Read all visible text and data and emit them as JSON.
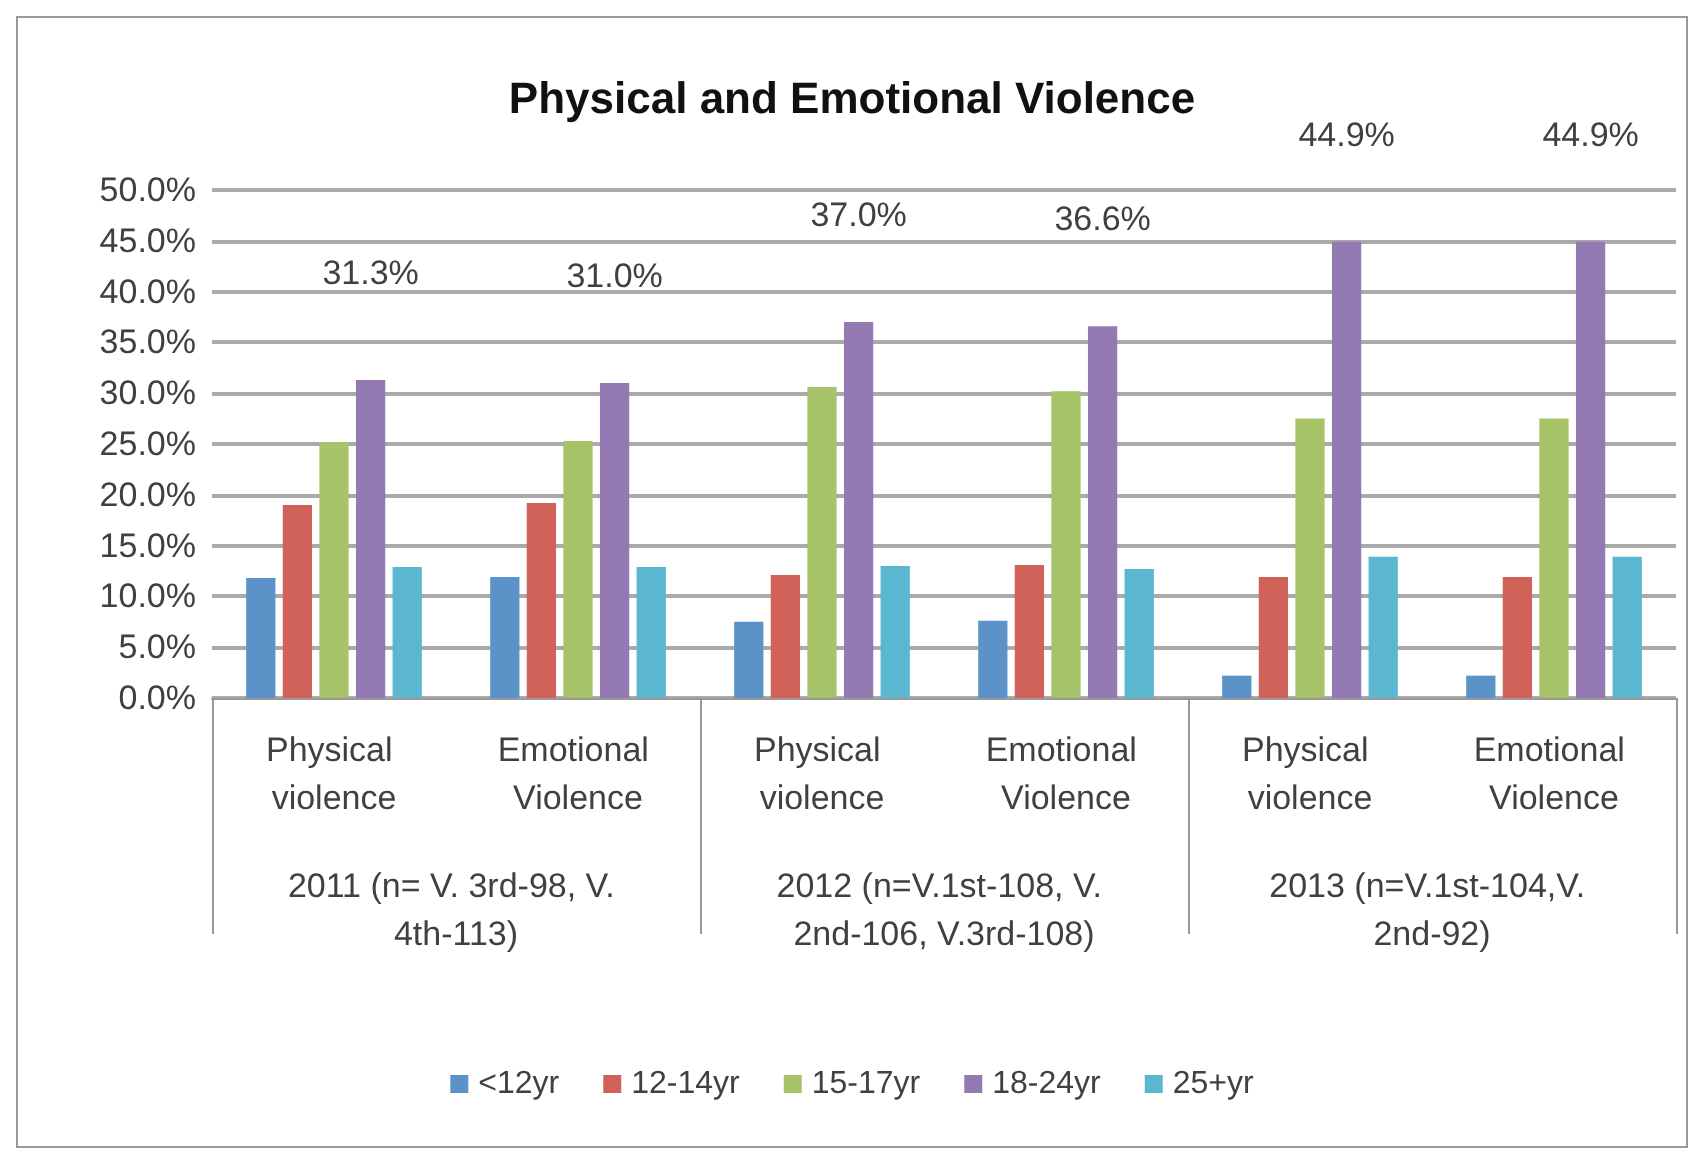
{
  "chart_data": {
    "type": "bar",
    "title": "Physical and Emotional Violence",
    "categories": [
      "Physical violence",
      "Emotional Violence",
      "Physical violence",
      "Emotional Violence",
      "Physical violence",
      "Emotional Violence"
    ],
    "series": [
      {
        "name": "<12yr",
        "color": "#5b93c8",
        "values": [
          11.8,
          11.9,
          7.5,
          7.6,
          2.2,
          2.2
        ]
      },
      {
        "name": "12-14yr",
        "color": "#d0625a",
        "values": [
          19.0,
          19.2,
          12.1,
          13.1,
          11.9,
          11.9
        ]
      },
      {
        "name": "15-17yr",
        "color": "#a7c36a",
        "values": [
          25.2,
          25.3,
          30.6,
          30.2,
          27.5,
          27.5
        ]
      },
      {
        "name": "18-24yr",
        "color": "#937ab3",
        "values": [
          31.3,
          31.0,
          37.0,
          36.6,
          44.9,
          44.9
        ],
        "value_labels": [
          "31.3%",
          "31.0%",
          "37.0%",
          "36.6%",
          "44.9%",
          "44.9%"
        ]
      },
      {
        "name": "25+yr",
        "color": "#5bb7d0",
        "values": [
          12.9,
          12.9,
          13.0,
          12.7,
          13.9,
          13.9
        ]
      }
    ],
    "ylim": [
      0,
      50
    ],
    "yticks": [
      {
        "value": 0,
        "label": "0.0%"
      },
      {
        "value": 5,
        "label": "5.0%"
      },
      {
        "value": 10,
        "label": "10.0%"
      },
      {
        "value": 15,
        "label": "15.0%"
      },
      {
        "value": 20,
        "label": "20.0%"
      },
      {
        "value": 25,
        "label": "25.0%"
      },
      {
        "value": 30,
        "label": "30.0%"
      },
      {
        "value": 35,
        "label": "35.0%"
      },
      {
        "value": 40,
        "label": "40.0%"
      },
      {
        "value": 45,
        "label": "45.0%"
      },
      {
        "value": 50,
        "label": "50.0%"
      }
    ],
    "annotations": [
      "2011 (n= V. 3rd-98, V. 4th-113)",
      "2012 (n=V.1st-108, V. 2nd-106, V.3rd-108)",
      "2013 (n=V.1st-104,V. 2nd-92)"
    ],
    "grid": "y",
    "legend": "bottom"
  }
}
